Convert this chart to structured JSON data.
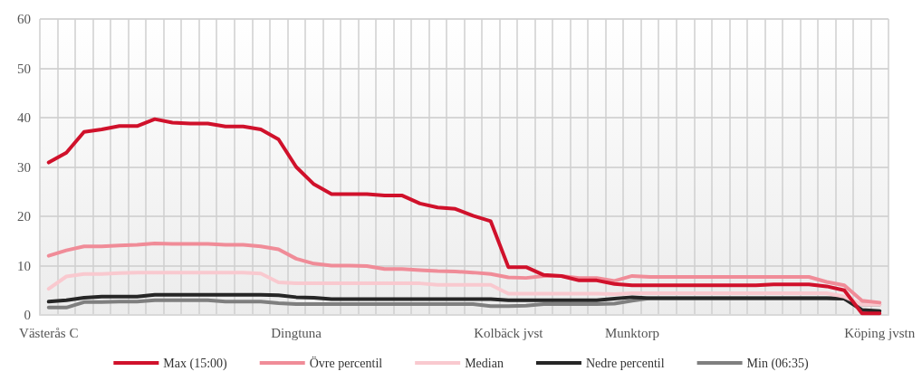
{
  "chart_data": {
    "type": "line",
    "categories": [
      "Västerås C",
      null,
      null,
      null,
      null,
      null,
      null,
      null,
      null,
      null,
      null,
      null,
      null,
      null,
      "Dingtuna",
      null,
      null,
      null,
      null,
      null,
      null,
      null,
      null,
      null,
      null,
      null,
      "Kolbäck jvst",
      null,
      null,
      null,
      null,
      null,
      null,
      "Munktorp",
      null,
      null,
      null,
      null,
      null,
      null,
      null,
      null,
      null,
      null,
      null,
      null,
      null,
      "Köping jvstn"
    ],
    "series": [
      {
        "name": "Max (15:00)",
        "color": "#d0112b",
        "values": [
          30.9,
          32.9,
          37.1,
          37.6,
          38.3,
          38.3,
          39.7,
          39.0,
          38.8,
          38.8,
          38.2,
          38.2,
          37.6,
          35.6,
          30.0,
          26.5,
          24.5,
          24.5,
          24.5,
          24.2,
          24.2,
          22.6,
          21.8,
          21.5,
          20.1,
          19.0,
          9.7,
          9.7,
          8.1,
          7.9,
          7.0,
          7.0,
          6.3,
          6.0,
          6.0,
          6.0,
          6.0,
          6.0,
          6.0,
          6.0,
          6.0,
          6.2,
          6.2,
          6.2,
          5.8,
          5.0,
          0.3,
          0.3
        ]
      },
      {
        "name": "Övre percentil",
        "color": "#f08c98",
        "values": [
          12.0,
          13.1,
          13.9,
          13.9,
          14.1,
          14.2,
          14.5,
          14.4,
          14.4,
          14.4,
          14.2,
          14.2,
          13.9,
          13.3,
          11.4,
          10.4,
          10.0,
          10.0,
          9.9,
          9.3,
          9.3,
          9.1,
          8.9,
          8.8,
          8.6,
          8.3,
          7.6,
          7.5,
          7.9,
          7.9,
          7.5,
          7.5,
          6.9,
          7.9,
          7.7,
          7.7,
          7.7,
          7.7,
          7.7,
          7.7,
          7.7,
          7.7,
          7.7,
          7.7,
          6.7,
          6.0,
          2.9,
          2.5
        ]
      },
      {
        "name": "Median",
        "color": "#f9c9cf",
        "values": [
          5.3,
          7.8,
          8.3,
          8.3,
          8.5,
          8.6,
          8.6,
          8.6,
          8.6,
          8.6,
          8.6,
          8.6,
          8.4,
          6.6,
          6.4,
          6.4,
          6.4,
          6.4,
          6.4,
          6.4,
          6.4,
          6.4,
          6.1,
          6.1,
          6.1,
          6.1,
          4.3,
          4.3,
          4.3,
          4.3,
          4.3,
          4.3,
          4.2,
          4.4,
          4.4,
          4.4,
          4.4,
          4.4,
          4.4,
          4.4,
          4.4,
          4.4,
          4.4,
          4.4,
          4.4,
          3.7,
          2.1,
          2.1
        ]
      },
      {
        "name": "Nedre percentil",
        "color": "#262626",
        "values": [
          2.7,
          3.0,
          3.5,
          3.7,
          3.7,
          3.7,
          4.1,
          4.1,
          4.1,
          4.1,
          4.1,
          4.1,
          4.1,
          4.0,
          3.6,
          3.5,
          3.2,
          3.2,
          3.2,
          3.2,
          3.2,
          3.2,
          3.2,
          3.2,
          3.2,
          3.2,
          3.0,
          3.0,
          3.0,
          3.0,
          3.0,
          3.0,
          3.3,
          3.6,
          3.4,
          3.4,
          3.4,
          3.4,
          3.4,
          3.4,
          3.4,
          3.4,
          3.4,
          3.4,
          3.4,
          3.3,
          1.0,
          0.8
        ]
      },
      {
        "name": "Min (06:35)",
        "color": "#7f7f7f",
        "values": [
          1.5,
          1.5,
          2.6,
          2.6,
          2.7,
          2.7,
          3.0,
          3.0,
          3.0,
          3.0,
          2.7,
          2.7,
          2.7,
          2.4,
          2.2,
          2.2,
          2.2,
          2.2,
          2.2,
          2.2,
          2.2,
          2.2,
          2.2,
          2.2,
          2.2,
          1.8,
          1.8,
          1.9,
          2.2,
          2.2,
          2.2,
          2.2,
          2.3,
          2.9,
          3.4,
          3.4,
          3.4,
          3.4,
          3.4,
          3.4,
          3.4,
          3.4,
          3.4,
          3.4,
          3.4,
          3.3,
          2.1,
          2.1
        ]
      }
    ],
    "ylim": [
      0,
      60
    ],
    "yticks": [
      0,
      10,
      20,
      30,
      40,
      50,
      60
    ],
    "grid": true,
    "legend": "bottom",
    "marker": "none",
    "line_style": "solid"
  }
}
